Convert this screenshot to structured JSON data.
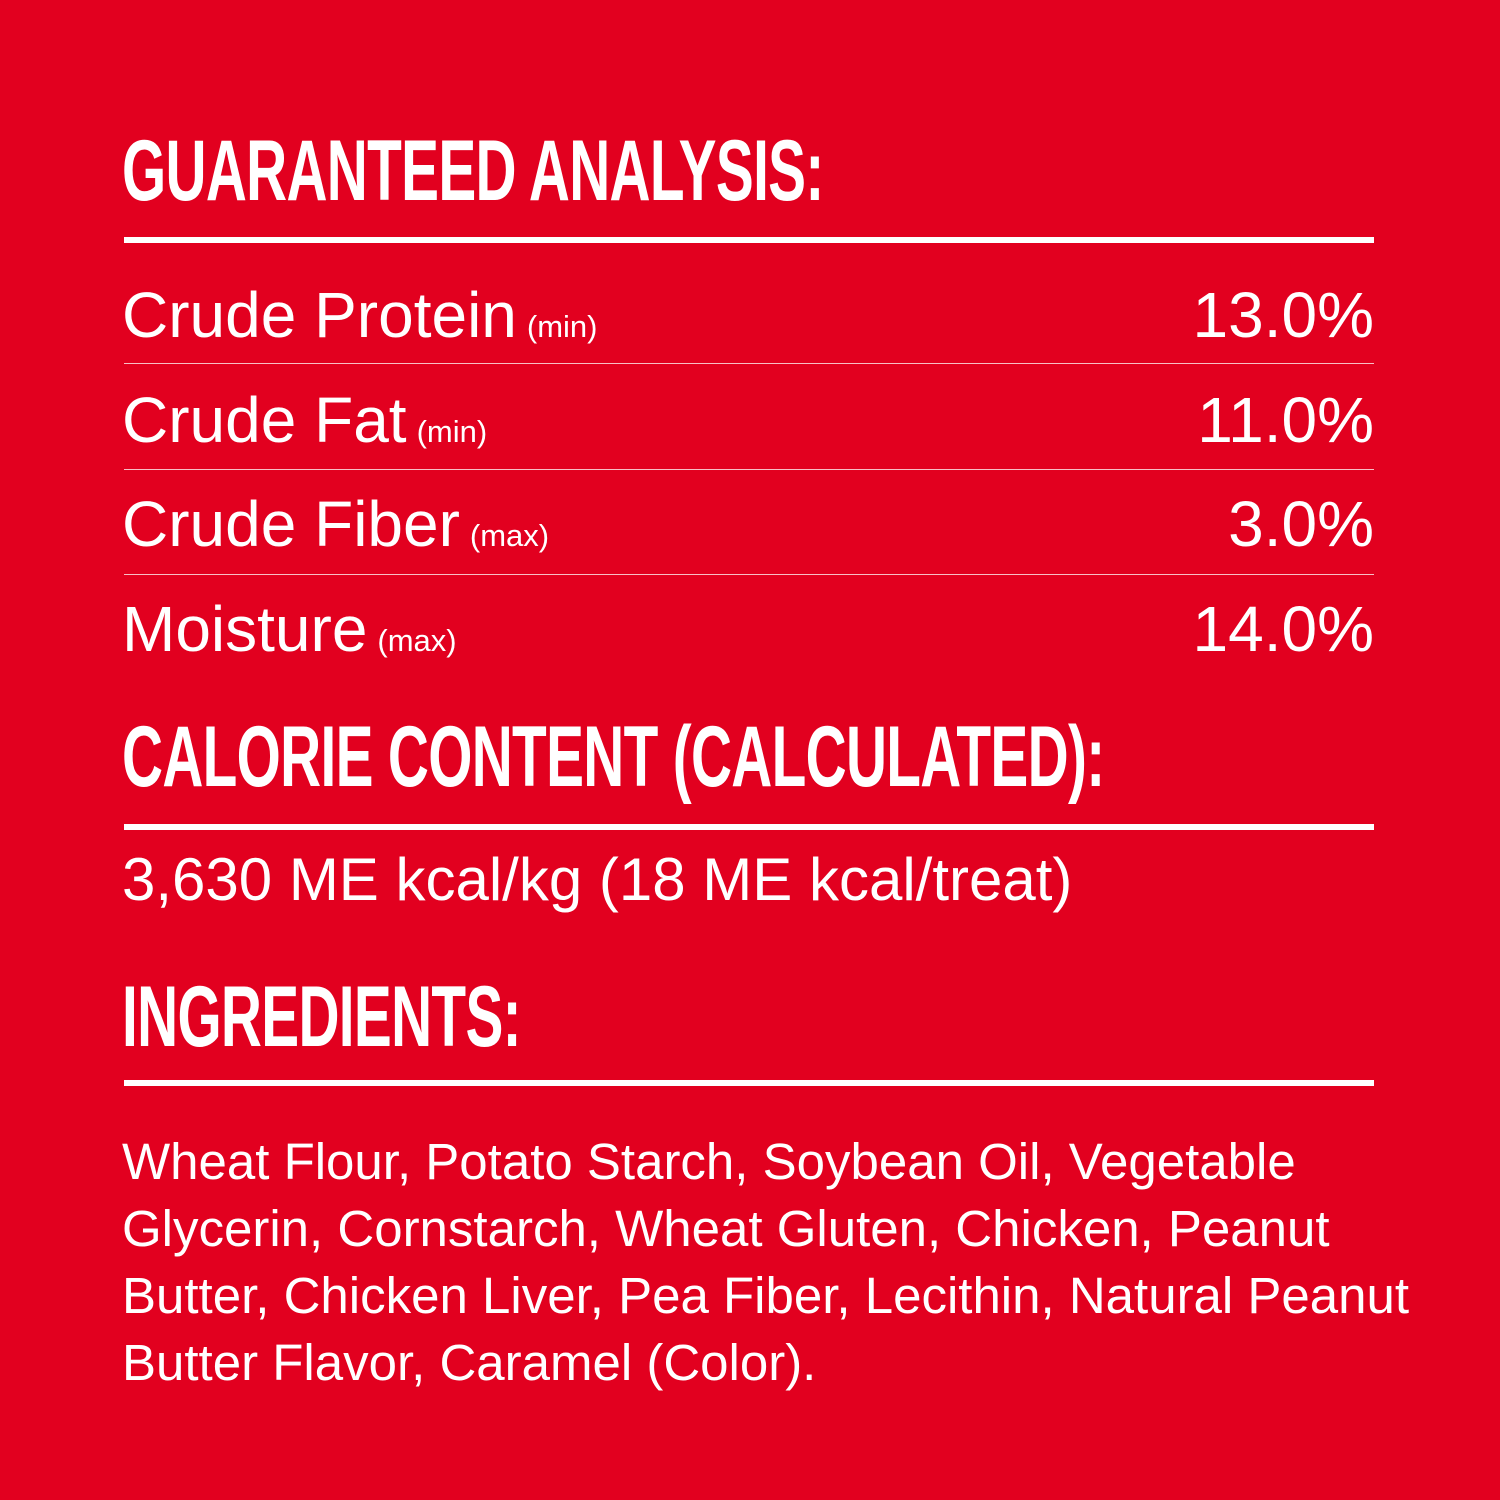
{
  "guaranteed_analysis": {
    "heading": "GUARANTEED ANALYSIS:",
    "rows": [
      {
        "name": "Crude Protein",
        "qualifier": "(min)",
        "value": "13.0%"
      },
      {
        "name": "Crude Fat",
        "qualifier": "(min)",
        "value": "11.0%"
      },
      {
        "name": "Crude Fiber",
        "qualifier": "(max)",
        "value": "3.0%"
      },
      {
        "name": "Moisture",
        "qualifier": "(max)",
        "value": "14.0%"
      }
    ]
  },
  "calorie_content": {
    "heading": "CALORIE CONTENT (CALCULATED):",
    "text": "3,630 ME kcal/kg (18 ME kcal/treat)"
  },
  "ingredients": {
    "heading": "INGREDIENTS:",
    "text": "Wheat Flour, Potato Starch, Soybean Oil, Vegetable Glycerin, Cornstarch, Wheat Gluten, Chicken, Peanut Butter, Chicken Liver, Pea Fiber, Lecithin, Natural Peanut Butter Flavor, Caramel (Color)."
  },
  "colors": {
    "background": "#E2001F",
    "text": "#FFFFFF"
  }
}
